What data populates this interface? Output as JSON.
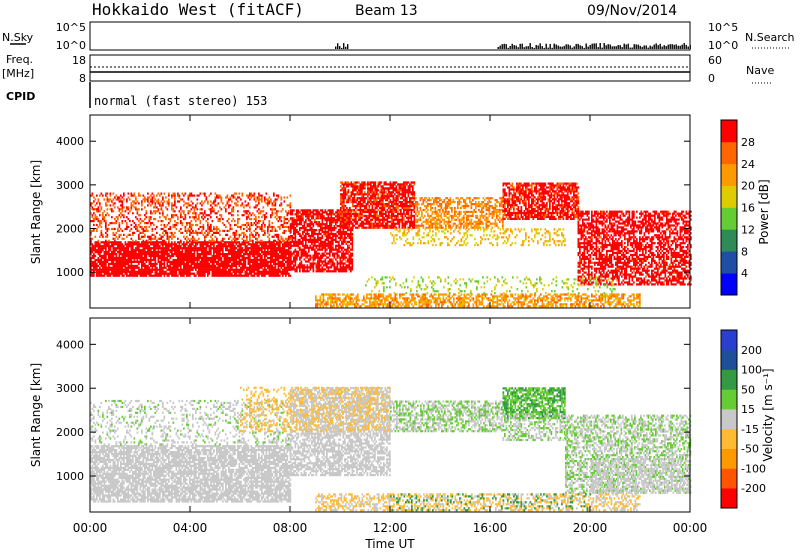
{
  "header": {
    "station": "Hokkaido West (fitACF)",
    "beam": "Beam 13",
    "date": "09/Nov/2014"
  },
  "top_panels": {
    "nsky_label": "N.Sky",
    "nsky_ticks": [
      "10^5",
      "10^0"
    ],
    "nsearch_label": "N.Search",
    "nsearch_ticks": [
      "10^5",
      "10^0"
    ],
    "freq_label": "Freq.",
    "freq_unit": "[MHz]",
    "freq_ticks": [
      "18",
      "8"
    ],
    "nave_label": "Nave",
    "nave_ticks": [
      "60",
      "0"
    ],
    "cpid_label": "CPID",
    "cpid_text": "normal (fast stereo) 153"
  },
  "colors": {
    "power_scale": [
      "#0000ff",
      "#1f4fa5",
      "#2e8b57",
      "#66cc33",
      "#ddcc00",
      "#ff9900",
      "#ff6600",
      "#ff0000"
    ],
    "velocity_scale": [
      "#ff0000",
      "#ff5500",
      "#ff9900",
      "#ffbb33",
      "#c8c8c8",
      "#66cc33",
      "#339944",
      "#1f4f99",
      "#2b3fcf"
    ],
    "ground_scatter": "#c8c8c8"
  },
  "chart_data": [
    {
      "type": "heatmap",
      "title": "Power",
      "ylabel": "Slant Range [km]",
      "xlabel": "Time UT",
      "x_ticks": [
        "00:00",
        "04:00",
        "08:00",
        "12:00",
        "16:00",
        "20:00",
        "00:00"
      ],
      "x_hours": [
        0,
        4,
        8,
        12,
        16,
        20,
        24
      ],
      "y_ticks": [
        1000,
        2000,
        3000,
        4000
      ],
      "ylim": [
        180,
        4600
      ],
      "colorbar": {
        "label": "Power [dB]",
        "ticks": [
          "4",
          "8",
          "12",
          "16",
          "20",
          "24",
          "28"
        ],
        "range": [
          0,
          30
        ]
      },
      "regions": [
        {
          "t0": 0,
          "t1": 8,
          "r0": 900,
          "r1": 1700,
          "value": 30,
          "fill": 0.85
        },
        {
          "t0": 0,
          "t1": 8,
          "r0": 1700,
          "r1": 2800,
          "value": 26,
          "fill": 0.35
        },
        {
          "t0": 8,
          "t1": 10.5,
          "r0": 1000,
          "r1": 2400,
          "value": 29,
          "fill": 0.7
        },
        {
          "t0": 10,
          "t1": 13,
          "r0": 2000,
          "r1": 3050,
          "value": 28,
          "fill": 0.75
        },
        {
          "t0": 13,
          "t1": 16.5,
          "r0": 2000,
          "r1": 2700,
          "value": 22,
          "fill": 0.55
        },
        {
          "t0": 16.5,
          "t1": 19.5,
          "r0": 2200,
          "r1": 3050,
          "value": 28,
          "fill": 0.75
        },
        {
          "t0": 19.5,
          "t1": 24,
          "r0": 700,
          "r1": 2400,
          "value": 29,
          "fill": 0.6
        },
        {
          "t0": 9,
          "t1": 22,
          "r0": 200,
          "r1": 500,
          "value": 21,
          "fill": 0.6
        },
        {
          "t0": 11,
          "t1": 21,
          "r0": 500,
          "r1": 900,
          "value": 15,
          "fill": 0.15
        },
        {
          "t0": 12,
          "t1": 19,
          "r0": 1600,
          "r1": 2000,
          "value": 18,
          "fill": 0.25
        }
      ]
    },
    {
      "type": "heatmap",
      "title": "Velocity",
      "ylabel": "Slant Range [km]",
      "xlabel": "Time UT",
      "x_ticks": [
        "00:00",
        "04:00",
        "08:00",
        "12:00",
        "16:00",
        "20:00",
        "00:00"
      ],
      "x_hours": [
        0,
        4,
        8,
        12,
        16,
        20,
        24
      ],
      "y_ticks": [
        1000,
        2000,
        3000,
        4000
      ],
      "ylim": [
        180,
        4600
      ],
      "colorbar": {
        "label": "Velocity [m s⁻¹]",
        "ticks": [
          "-200",
          "-100",
          "-50",
          "-15",
          "15",
          "50",
          "100",
          "200"
        ],
        "range": [
          -250,
          250
        ]
      },
      "regions": [
        {
          "t0": 0,
          "t1": 8,
          "r0": 400,
          "r1": 1700,
          "value": 0,
          "fill": 0.75
        },
        {
          "t0": 0,
          "t1": 8,
          "r0": 1700,
          "r1": 2700,
          "value": 20,
          "fill": 0.25
        },
        {
          "t0": 8,
          "t1": 12,
          "r0": 1000,
          "r1": 3000,
          "value": 0,
          "fill": 0.65
        },
        {
          "t0": 6,
          "t1": 12,
          "r0": 2000,
          "r1": 3000,
          "value": -60,
          "fill": 0.25
        },
        {
          "t0": 12,
          "t1": 16.5,
          "r0": 2000,
          "r1": 2700,
          "value": 25,
          "fill": 0.55
        },
        {
          "t0": 16.5,
          "t1": 19,
          "r0": 2300,
          "r1": 3000,
          "value": 80,
          "fill": 0.7
        },
        {
          "t0": 16.5,
          "t1": 19,
          "r0": 1800,
          "r1": 2400,
          "value": 25,
          "fill": 0.5
        },
        {
          "t0": 19,
          "t1": 24,
          "r0": 600,
          "r1": 2400,
          "value": 25,
          "fill": 0.55
        },
        {
          "t0": 20,
          "t1": 24,
          "r0": 600,
          "r1": 1400,
          "value": 0,
          "fill": 0.4
        },
        {
          "t0": 9,
          "t1": 22,
          "r0": 200,
          "r1": 600,
          "value": -30,
          "fill": 0.45
        },
        {
          "t0": 12,
          "t1": 20,
          "r0": 200,
          "r1": 600,
          "value": 120,
          "fill": 0.12
        }
      ]
    }
  ]
}
